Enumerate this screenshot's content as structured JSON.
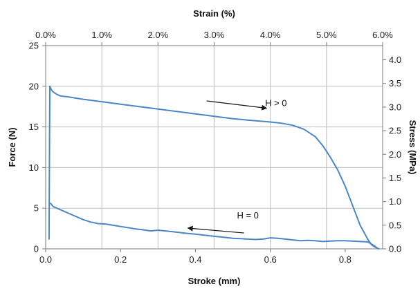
{
  "chart_data": {
    "type": "line",
    "xlabel": "Stroke (mm)",
    "ylabel": "Force (N)",
    "x2label": "Strain (%)",
    "y2label": "Stress (MPa)",
    "xlim": [
      0,
      0.9
    ],
    "ylim": [
      0,
      25
    ],
    "x2lim": [
      0,
      6.0
    ],
    "y2lim": [
      0,
      4.3
    ],
    "x_ticks": [
      0,
      0.2,
      0.4,
      0.6,
      0.8
    ],
    "x_tick_labels": [
      "0.0",
      "0.2",
      "0.4",
      "0.6",
      "0.8"
    ],
    "y_ticks": [
      0,
      5,
      10,
      15,
      20,
      25
    ],
    "y_tick_labels": [
      "0",
      "5",
      "10",
      "15",
      "20",
      "25"
    ],
    "x2_ticks": [
      0,
      1,
      2,
      3,
      4,
      5,
      6
    ],
    "x2_tick_labels": [
      "0.0%",
      "1.0%",
      "2.0%",
      "3.0%",
      "4.0%",
      "5.0%",
      "6.0%"
    ],
    "y2_ticks": [
      0,
      0.5,
      1.0,
      1.5,
      2.0,
      2.5,
      3.0,
      3.5,
      4.0
    ],
    "y2_tick_labels": [
      "0.0",
      "0.5",
      "1.0",
      "1.5",
      "2.0",
      "2.5",
      "3.0",
      "3.5",
      "4.0"
    ],
    "grid": true,
    "line_color": "#4a86c8",
    "series": [
      {
        "x": [
          0.009,
          0.01,
          0.011,
          0.013,
          0.016,
          0.02,
          0.03,
          0.04,
          0.06,
          0.1,
          0.15,
          0.2,
          0.25,
          0.3,
          0.35,
          0.4,
          0.45,
          0.5,
          0.55,
          0.6,
          0.63,
          0.66,
          0.69,
          0.72,
          0.74,
          0.76,
          0.78,
          0.8,
          0.82,
          0.84,
          0.86,
          0.87,
          0.88,
          0.885,
          0.89
        ],
        "y": [
          1.2,
          10,
          20,
          19.8,
          19.5,
          19.3,
          19.0,
          18.8,
          18.7,
          18.4,
          18.1,
          17.8,
          17.5,
          17.2,
          16.9,
          16.6,
          16.3,
          16.0,
          15.8,
          15.6,
          15.45,
          15.2,
          14.7,
          13.8,
          12.7,
          11.3,
          9.7,
          7.7,
          5.3,
          2.9,
          1.2,
          0.5,
          0.2,
          0.1,
          0.0
        ]
      },
      {
        "x": [
          0.013,
          0.02,
          0.04,
          0.06,
          0.08,
          0.1,
          0.12,
          0.14,
          0.16,
          0.18,
          0.2,
          0.22,
          0.24,
          0.26,
          0.28,
          0.3,
          0.32,
          0.34,
          0.36,
          0.38,
          0.4,
          0.42,
          0.44,
          0.46,
          0.48,
          0.5,
          0.52,
          0.54,
          0.56,
          0.58,
          0.6,
          0.62,
          0.64,
          0.66,
          0.68,
          0.7,
          0.72,
          0.74,
          0.76,
          0.78,
          0.8,
          0.82,
          0.84,
          0.86,
          0.87,
          0.88,
          0.885,
          0.89
        ],
        "y": [
          5.6,
          5.2,
          4.8,
          4.4,
          4.0,
          3.6,
          3.3,
          3.1,
          3.05,
          2.9,
          2.75,
          2.6,
          2.45,
          2.35,
          2.2,
          2.3,
          2.2,
          2.1,
          2.0,
          1.9,
          1.8,
          1.7,
          1.6,
          1.5,
          1.4,
          1.3,
          1.25,
          1.2,
          1.15,
          1.2,
          1.35,
          1.3,
          1.2,
          1.1,
          1.0,
          1.05,
          1.0,
          0.9,
          0.95,
          1.0,
          1.0,
          0.95,
          0.9,
          0.85,
          0.6,
          0.3,
          0.1,
          0.0
        ]
      }
    ],
    "annotations": [
      {
        "text": "H > 0",
        "x": 0.615,
        "y": 18.0,
        "arrow_from": [
          0.43,
          18.2
        ],
        "arrow_to": [
          0.59,
          17.3
        ]
      },
      {
        "text": "H = 0",
        "x": 0.54,
        "y": 4.15,
        "arrow_from": [
          0.53,
          1.95
        ],
        "arrow_to": [
          0.38,
          2.55
        ]
      }
    ]
  }
}
